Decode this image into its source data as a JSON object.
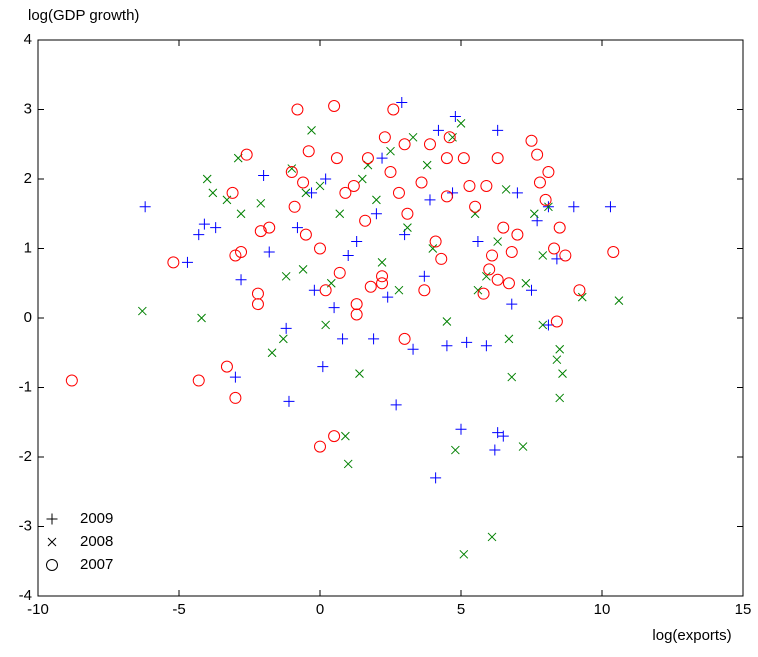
{
  "chart_data": {
    "type": "scatter",
    "ylabel": "log(GDP growth)",
    "xlabel": "log(exports)",
    "xlim": [
      -10,
      15
    ],
    "ylim": [
      -4,
      4
    ],
    "xticks": [
      -10,
      -5,
      0,
      5,
      10,
      15
    ],
    "yticks": [
      -4,
      -3,
      -2,
      -1,
      0,
      1,
      2,
      3,
      4
    ],
    "grid": false,
    "legend": "lower left",
    "series": [
      {
        "name": "2009",
        "color": "#0000ff",
        "marker": "plus",
        "x": [
          -6.2,
          -4.7,
          -4.3,
          -4.1,
          -3.7,
          -3.0,
          -2.8,
          -2.0,
          -1.8,
          -1.2,
          -1.1,
          -0.8,
          -0.3,
          0.1,
          0.2,
          0.5,
          0.8,
          1.3,
          1.9,
          2.2,
          2.4,
          2.7,
          2.9,
          3.3,
          3.7,
          4.1,
          4.2,
          4.5,
          4.7,
          5.0,
          5.2,
          5.9,
          6.2,
          6.3,
          6.3,
          6.5,
          7.0,
          7.5,
          7.7,
          8.1,
          8.4,
          9.0,
          10.3,
          8.1,
          5.6,
          3.0,
          1.0,
          -0.2,
          4.8,
          2.0,
          6.8,
          3.9
        ],
        "y": [
          1.6,
          0.8,
          1.2,
          1.35,
          1.3,
          -0.85,
          0.55,
          2.05,
          0.95,
          -0.15,
          -1.2,
          1.3,
          1.8,
          -0.7,
          2.0,
          0.15,
          -0.3,
          1.1,
          -0.3,
          2.3,
          0.3,
          -1.25,
          3.1,
          -0.45,
          0.6,
          -2.3,
          2.7,
          -0.4,
          1.8,
          -1.6,
          -0.35,
          -0.4,
          -1.9,
          2.7,
          -1.65,
          -1.7,
          1.8,
          0.4,
          1.4,
          1.6,
          0.85,
          1.6,
          1.6,
          -0.1,
          1.1,
          1.2,
          0.9,
          0.4,
          2.9,
          1.5,
          0.2,
          1.7
        ]
      },
      {
        "name": "2008",
        "color": "#008000",
        "marker": "cross",
        "x": [
          -6.3,
          -4.2,
          -4.0,
          -3.8,
          -3.3,
          -2.9,
          -2.8,
          -2.1,
          -1.7,
          -1.3,
          -1.2,
          -1.0,
          -0.6,
          -0.3,
          0.0,
          0.2,
          0.4,
          0.7,
          1.0,
          0.9,
          1.4,
          1.7,
          2.0,
          2.2,
          2.8,
          3.1,
          3.3,
          3.8,
          4.0,
          4.5,
          4.7,
          4.8,
          5.0,
          5.1,
          5.5,
          5.9,
          6.1,
          6.3,
          6.7,
          6.8,
          7.2,
          7.3,
          7.6,
          7.9,
          8.1,
          8.5,
          8.6,
          8.4,
          8.5,
          9.3,
          10.6,
          7.9,
          5.6,
          2.5,
          -0.5,
          1.5,
          6.6
        ],
        "y": [
          0.1,
          0.0,
          2.0,
          1.8,
          1.7,
          2.3,
          1.5,
          1.65,
          -0.5,
          -0.3,
          0.6,
          2.15,
          0.7,
          2.7,
          1.9,
          -0.1,
          0.5,
          1.5,
          -2.1,
          -1.7,
          -0.8,
          2.2,
          1.7,
          0.8,
          0.4,
          1.3,
          2.6,
          2.2,
          1.0,
          -0.05,
          2.6,
          -1.9,
          2.8,
          -3.4,
          1.5,
          0.6,
          -3.15,
          1.1,
          -0.3,
          -0.85,
          -1.85,
          0.5,
          1.5,
          -0.1,
          1.6,
          -1.15,
          -0.8,
          -0.6,
          -0.45,
          0.3,
          0.25,
          0.9,
          0.4,
          2.4,
          1.8,
          2.0,
          1.85
        ]
      },
      {
        "name": "2007",
        "color": "#ff0000",
        "marker": "circle",
        "x": [
          -8.8,
          -5.2,
          -4.3,
          -3.3,
          -3.0,
          -3.0,
          -2.8,
          -2.2,
          -2.2,
          -2.6,
          -3.1,
          -2.1,
          -1.8,
          -0.8,
          -1.0,
          -0.6,
          -0.9,
          -0.5,
          -0.4,
          0.0,
          0.2,
          0.5,
          0.6,
          0.7,
          0.9,
          1.2,
          1.3,
          1.3,
          1.6,
          1.7,
          1.8,
          2.2,
          2.2,
          2.3,
          2.5,
          2.6,
          2.8,
          3.0,
          3.1,
          3.0,
          3.6,
          3.7,
          3.9,
          4.1,
          4.3,
          4.5,
          4.6,
          4.5,
          5.1,
          5.3,
          5.5,
          5.9,
          6.1,
          6.0,
          6.3,
          6.5,
          6.7,
          6.8,
          7.0,
          7.5,
          7.7,
          7.8,
          8.1,
          8.0,
          8.3,
          8.4,
          8.5,
          8.7,
          9.2,
          10.4,
          0.0,
          0.5,
          5.8,
          6.3
        ],
        "y": [
          -0.9,
          0.8,
          -0.9,
          -0.7,
          -1.15,
          0.9,
          0.95,
          0.2,
          0.35,
          2.35,
          1.8,
          1.25,
          1.3,
          3.0,
          2.1,
          1.95,
          1.6,
          1.2,
          2.4,
          1.0,
          0.4,
          3.05,
          2.3,
          0.65,
          1.8,
          1.9,
          0.2,
          0.05,
          1.4,
          2.3,
          0.45,
          0.5,
          0.6,
          2.6,
          2.1,
          3.0,
          1.8,
          2.5,
          1.5,
          -0.3,
          1.95,
          0.4,
          2.5,
          1.1,
          0.85,
          2.3,
          2.6,
          1.75,
          2.3,
          1.9,
          1.6,
          1.9,
          0.9,
          0.7,
          2.3,
          1.3,
          0.5,
          0.95,
          1.2,
          2.55,
          2.35,
          1.95,
          2.1,
          1.7,
          1.0,
          -0.05,
          1.3,
          0.9,
          0.4,
          0.95,
          -1.85,
          -1.7,
          0.35,
          0.55
        ]
      }
    ]
  }
}
